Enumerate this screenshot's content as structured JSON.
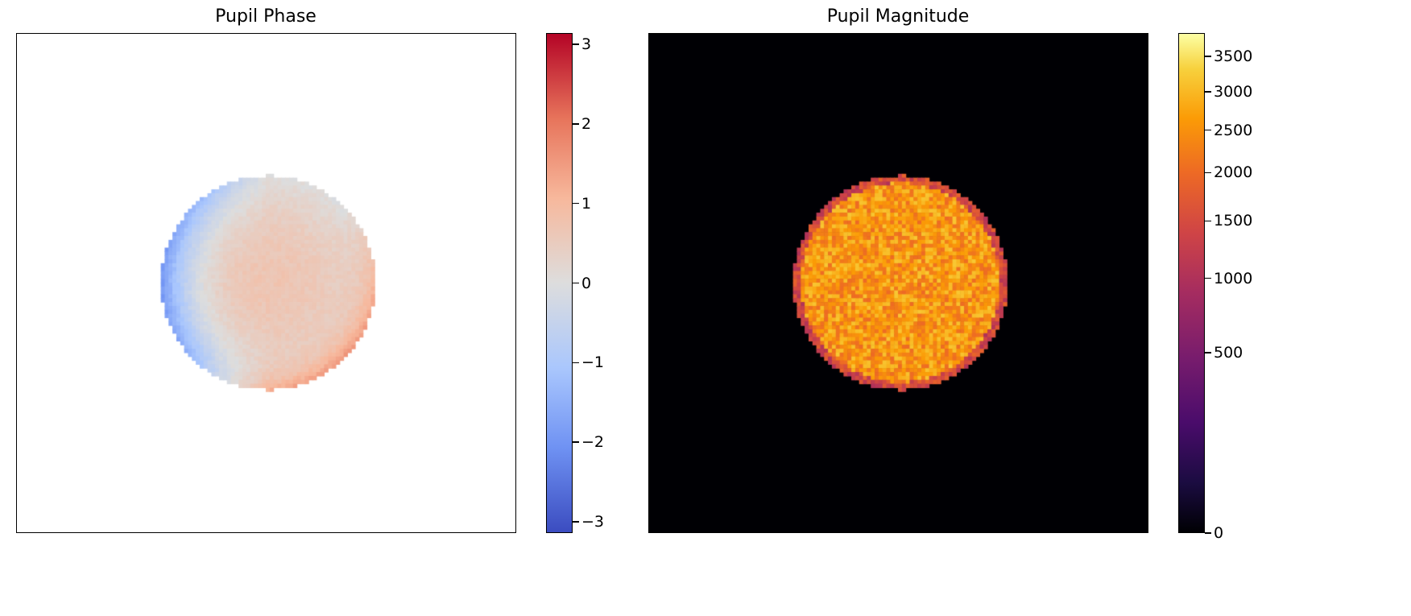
{
  "chart_data": [
    {
      "type": "heatmap",
      "title": "Pupil Phase",
      "colormap": "coolwarm",
      "grid": false,
      "axes_ticks": false,
      "masked_background": "white (outside pupil)",
      "pupil_shape": "disk",
      "colorbar": {
        "range": [
          -3.14159,
          3.14159
        ],
        "ticks": [
          3,
          2,
          1,
          0,
          -1,
          -2,
          -3
        ],
        "tick_labels": [
          "3",
          "2",
          "1",
          "0",
          "−1",
          "−2",
          "−3"
        ]
      },
      "description_values": {
        "center_phase": 0.7,
        "left_edge_phase": -1.8,
        "lower_right_edge_phase": 1.6
      }
    },
    {
      "type": "heatmap",
      "title": "Pupil Magnitude",
      "colormap": "inferno",
      "grid": false,
      "axes_ticks": false,
      "colorbar_scale": "sqrt",
      "background_value": 0,
      "pupil_shape": "disk",
      "colorbar": {
        "range": [
          0,
          3850
        ],
        "ticks": [
          3500,
          3000,
          2500,
          2000,
          1500,
          1000,
          500,
          0
        ],
        "tick_labels": [
          "3500",
          "3000",
          "2500",
          "2000",
          "1500",
          "1000",
          "500",
          "0"
        ]
      },
      "description_values": {
        "typical_pupil_value": 2600,
        "edge_value": 1000
      }
    }
  ]
}
